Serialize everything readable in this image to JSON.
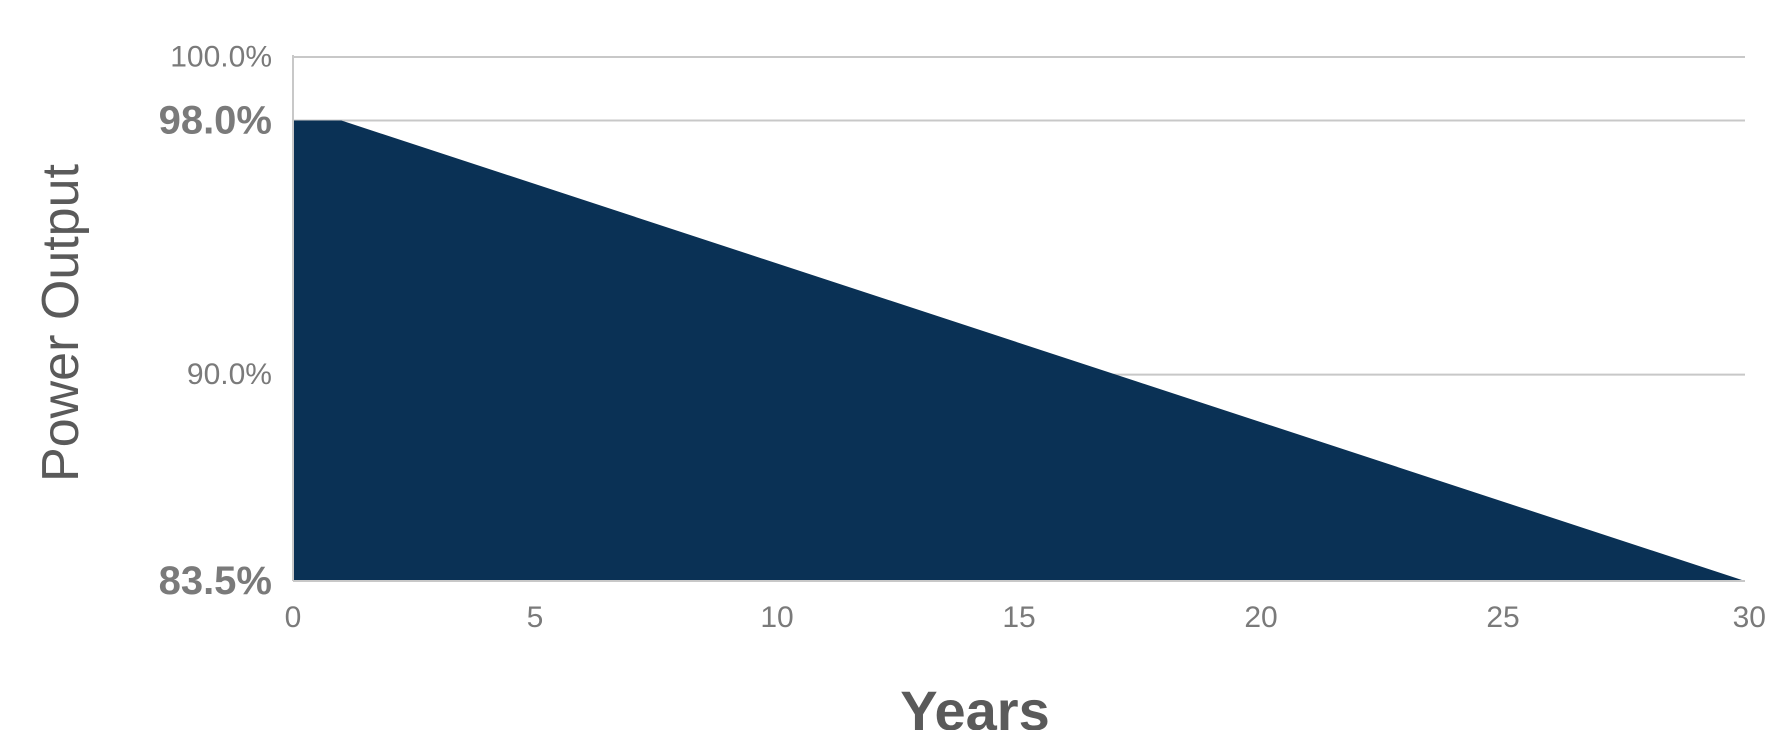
{
  "chart_data": {
    "type": "area",
    "title": "",
    "xlabel": "Years",
    "ylabel": "Power Output",
    "xlim": [
      0,
      30
    ],
    "ylim": [
      83.5,
      100
    ],
    "x": [
      0,
      1,
      30
    ],
    "series": [
      {
        "values": [
          98.0,
          98.0,
          83.5
        ]
      }
    ],
    "x_ticks": [
      {
        "value": 0,
        "label": "0"
      },
      {
        "value": 5,
        "label": "5"
      },
      {
        "value": 10,
        "label": "10"
      },
      {
        "value": 15,
        "label": "15"
      },
      {
        "value": 20,
        "label": "20"
      },
      {
        "value": 25,
        "label": "25"
      },
      {
        "value": 30,
        "label": "30"
      }
    ],
    "y_ticks": [
      {
        "value": 100,
        "label": "100.0%",
        "highlight": false
      },
      {
        "value": 98,
        "label": "98.0%",
        "highlight": true
      },
      {
        "value": 90,
        "label": "90.0%",
        "highlight": false
      },
      {
        "value": 83.5,
        "label": "83.5%",
        "highlight": true
      }
    ],
    "gridlines": [
      100,
      98,
      90
    ],
    "grid": true,
    "legend": "none",
    "colors": {
      "area": "#0a3155",
      "highlight_label": "#8b1a4f",
      "tick_label": "#7a7a7a",
      "grid": "#c8c8c8"
    }
  }
}
